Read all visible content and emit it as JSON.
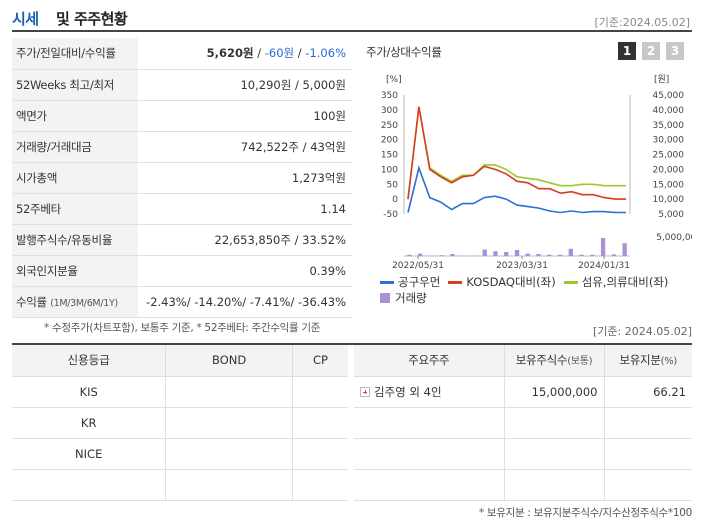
{
  "header": {
    "title_accent": "시세",
    "title_rest": "및 주주현황",
    "date": "[기준:2024.05.02]"
  },
  "info_rows": [
    {
      "label": "주가/전일대비/수익률",
      "price": "5,620원",
      "change": "-60원",
      "rate": "-1.06%"
    },
    {
      "label": "52Weeks 최고/최저",
      "value": "10,290원 / 5,000원"
    },
    {
      "label": "액면가",
      "value": "100원"
    },
    {
      "label": "거래량/거래대금",
      "value": "742,522주 / 43억원"
    },
    {
      "label": "시가총액",
      "value": "1,273억원"
    },
    {
      "label": "52주베타",
      "value": "1.14"
    },
    {
      "label": "발행주식수/유동비율",
      "value": "22,653,850주 / 33.52%"
    },
    {
      "label": "외국인지분율",
      "value": "0.39%"
    },
    {
      "label": "수익률",
      "sublabel": "(1M/3M/6M/1Y)",
      "value": "-2.43%/ -14.20%/ -7.41%/ -36.43%"
    }
  ],
  "note1": "* 수정주가(차트포함), 보통주 기준, * 52주베타: 주간수익률 기준",
  "chart": {
    "title": "주가/상대수익률",
    "tabs": [
      "1",
      "2",
      "3"
    ],
    "left_unit": "[%]",
    "right_unit": "[원]",
    "colors": {
      "stock": "#2a6fd6",
      "kosdaq": "#d83b1e",
      "sector": "#9ac92a",
      "volume": "#a98fd6"
    }
  },
  "chart_data": {
    "type": "line",
    "x_ticks": [
      "2022/05/31",
      "2023/03/31",
      "2024/01/31"
    ],
    "y_left_ticks": [
      "350",
      "300",
      "250",
      "200",
      "150",
      "100",
      "50",
      "0",
      "-50"
    ],
    "y_right_ticks": [
      "45,000",
      "40,000",
      "35,000",
      "30,000",
      "25,000",
      "20,000",
      "15,000",
      "10,000",
      "5,000"
    ],
    "volume_tick": "5,000,000",
    "ylim_left": [
      -50,
      350
    ],
    "ylim_right": [
      5000,
      45000
    ],
    "series": [
      {
        "name": "공구우먼",
        "axis": "right",
        "values": [
          5500,
          20500,
          10500,
          9000,
          6500,
          8500,
          8500,
          10500,
          11000,
          10000,
          8000,
          7500,
          7000,
          6000,
          5500,
          6000,
          5500,
          5800,
          5800,
          5500,
          5500
        ]
      },
      {
        "name": "KOSDAQ대비(좌)",
        "axis": "left",
        "values": [
          0,
          310,
          100,
          75,
          55,
          75,
          80,
          110,
          100,
          85,
          60,
          55,
          35,
          35,
          20,
          25,
          15,
          15,
          5,
          0,
          0
        ]
      },
      {
        "name": "섬유,의류대비(좌)",
        "axis": "left",
        "values": [
          0,
          310,
          105,
          80,
          60,
          80,
          80,
          115,
          115,
          100,
          75,
          70,
          65,
          55,
          45,
          45,
          50,
          50,
          45,
          45,
          45
        ]
      }
    ],
    "volume": {
      "name": "거래량",
      "values": [
        0.3,
        0.6,
        0.1,
        0.2,
        0.5,
        0.1,
        0.1,
        1.6,
        1.2,
        1.0,
        1.5,
        0.6,
        0.5,
        0.3,
        0.3,
        1.8,
        0.3,
        0.3,
        4.5,
        0.4,
        3.2
      ]
    }
  },
  "legend": [
    {
      "label": "공구우먼",
      "color": "#2a6fd6"
    },
    {
      "label": "KOSDAQ대비(좌)",
      "color": "#d83b1e"
    },
    {
      "label": "섬유,의류대비(좌)",
      "color": "#9ac92a"
    },
    {
      "label": "거래량",
      "color": "#a98fd6"
    }
  ],
  "date2": "[기준: 2024.05.02]",
  "credit": {
    "headers": [
      "신용등급",
      "BOND",
      "CP"
    ],
    "rows": [
      [
        "KIS",
        "",
        ""
      ],
      [
        "KR",
        "",
        ""
      ],
      [
        "NICE",
        "",
        ""
      ],
      [
        "",
        "",
        ""
      ]
    ]
  },
  "holders": {
    "headers": [
      "주요주주",
      "보유주식수",
      "(보통)",
      "보유지분",
      "(%)"
    ],
    "rows": [
      {
        "name": "김주영 외 4인",
        "shares": "15,000,000",
        "pct": "66.21"
      },
      {
        "name": "",
        "shares": "",
        "pct": ""
      },
      {
        "name": "",
        "shares": "",
        "pct": ""
      },
      {
        "name": "",
        "shares": "",
        "pct": ""
      }
    ]
  },
  "note2": "* 보유지분 : 보유지분주식수/지수산정주식수*100"
}
